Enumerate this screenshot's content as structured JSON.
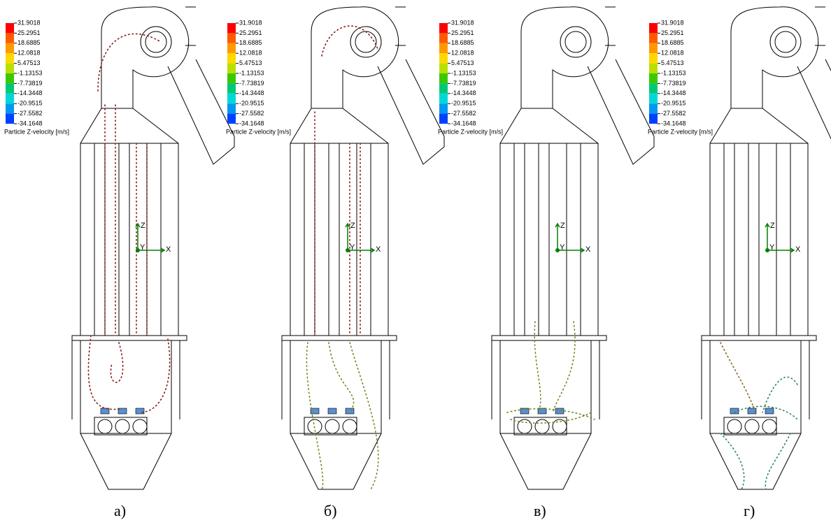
{
  "legend": {
    "title": "Particle Z-velocity [m/s]",
    "ticks": [
      "31.9018",
      "25.2951",
      "18.6885",
      "12.0818",
      "5.47513",
      "-1.13153",
      "-7.73819",
      "-14.3448",
      "-20.9515",
      "-27.5582",
      "-34.1648"
    ]
  },
  "axes": {
    "x": "X",
    "y": "Y",
    "z": "Z"
  },
  "panels": [
    {
      "label": "а)"
    },
    {
      "label": "б)"
    },
    {
      "label": "в)"
    },
    {
      "label": "г)"
    }
  ]
}
